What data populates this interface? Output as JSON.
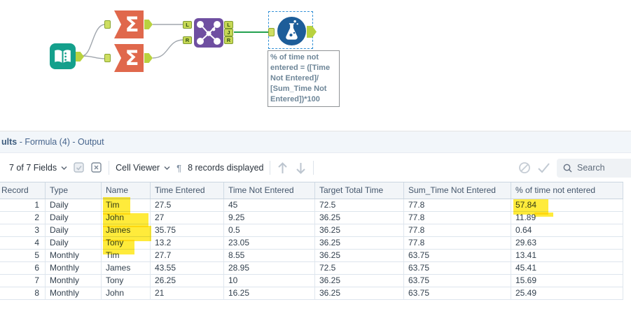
{
  "colors": {
    "input_tool": "#14a08c",
    "summarize_tool": "#e0684c",
    "join_tool": "#6f4fa1",
    "formula_tool": "#1d5d99",
    "anchor_green": "#c6d855",
    "connection_green": "#23a14f",
    "selection_blue": "#2f8fd6",
    "highlight_yellow": "#ffe818"
  },
  "canvas": {
    "summarize_glyph": "Σ",
    "join_inputs": [
      "L",
      "R"
    ],
    "join_outputs": [
      "L",
      "J",
      "R"
    ],
    "annotation_text": "% of time not\nentered = ([Time\nNot Entered]/\n[Sum_Time Not\nEntered])*100"
  },
  "results": {
    "title_bold": "ults",
    "title_rest": " - Formula (4) - Output",
    "toolbar": {
      "fields": "7 of 7 Fields",
      "cell_viewer": "Cell Viewer",
      "pilcrow": "¶",
      "records": "8 records displayed",
      "search_placeholder": "Search"
    },
    "table": {
      "columns": [
        "Record",
        "Type",
        "Name",
        "Time Entered",
        "Time Not Entered",
        "Target Total Time",
        "Sum_Time Not Entered",
        "% of time not entered"
      ],
      "rows": [
        [
          "1",
          "Daily",
          "Tim",
          "27.5",
          "45",
          "72.5",
          "77.8",
          "57.84"
        ],
        [
          "2",
          "Daily",
          "John",
          "27",
          "9.25",
          "36.25",
          "77.8",
          "11.89"
        ],
        [
          "3",
          "Daily",
          "James",
          "35.75",
          "0.5",
          "36.25",
          "77.8",
          "0.64"
        ],
        [
          "4",
          "Daily",
          "Tony",
          "13.2",
          "23.05",
          "36.25",
          "77.8",
          "29.63"
        ],
        [
          "5",
          "Monthly",
          "Tim",
          "27.7",
          "8.55",
          "36.25",
          "63.75",
          "13.41"
        ],
        [
          "6",
          "Monthly",
          "James",
          "43.55",
          "28.95",
          "72.5",
          "63.75",
          "45.41"
        ],
        [
          "7",
          "Monthly",
          "Tony",
          "26.25",
          "10",
          "36.25",
          "63.75",
          "15.69"
        ],
        [
          "8",
          "Monthly",
          "John",
          "21",
          "16.25",
          "36.25",
          "63.75",
          "25.49"
        ]
      ]
    }
  }
}
